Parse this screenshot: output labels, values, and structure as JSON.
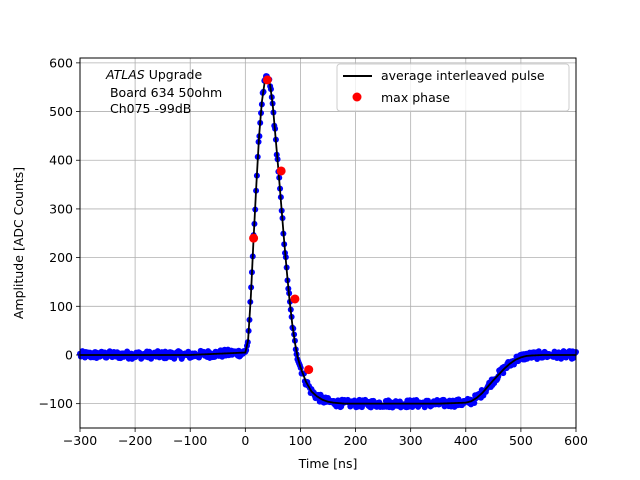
{
  "annotation": {
    "line1_italic": "ATLAS",
    "line1_rest": " Upgrade",
    "line2": " Board 634 50ohm",
    "line3": " Ch075 -99dB"
  },
  "chart_data": {
    "type": "scatter",
    "xlabel": "Time [ns]",
    "ylabel": "Amplitude [ADC Counts]",
    "xlim": [
      -300,
      600
    ],
    "ylim": [
      -150,
      610
    ],
    "xticks": [
      -300,
      -200,
      -100,
      0,
      100,
      200,
      300,
      400,
      500,
      600
    ],
    "xtick_labels": [
      "−300",
      "−200",
      "−100",
      "0",
      "100",
      "200",
      "300",
      "400",
      "500",
      "600"
    ],
    "yticks": [
      -100,
      0,
      100,
      200,
      300,
      400,
      500,
      600
    ],
    "ytick_labels": [
      "−100",
      "0",
      "100",
      "200",
      "300",
      "400",
      "500",
      "600"
    ],
    "grid": true,
    "legend_position": "upper-right",
    "colors": {
      "samples": "#0000ff",
      "pulse": "#000000",
      "max_phase": "#ff0000",
      "grid": "#b0b0b0"
    },
    "series": [
      {
        "name": "average interleaved pulse",
        "kind": "line",
        "x": [
          -300,
          -100,
          0,
          5,
          10,
          15,
          20,
          25,
          30,
          35,
          40,
          45,
          50,
          55,
          60,
          65,
          70,
          75,
          80,
          85,
          90,
          95,
          100,
          105,
          110,
          115,
          120,
          130,
          140,
          150,
          160,
          170,
          180,
          200,
          250,
          300,
          350,
          400,
          410,
          420,
          430,
          440,
          450,
          460,
          470,
          480,
          490,
          500,
          510,
          520,
          540,
          560,
          600
        ],
        "y": [
          0,
          0,
          5,
          30,
          120,
          240,
          350,
          450,
          520,
          560,
          570,
          555,
          510,
          445,
          380,
          310,
          240,
          175,
          115,
          65,
          25,
          -5,
          -25,
          -40,
          -55,
          -65,
          -75,
          -85,
          -92,
          -96,
          -98,
          -99,
          -100,
          -100,
          -100,
          -100,
          -100,
          -98,
          -95,
          -88,
          -78,
          -65,
          -52,
          -40,
          -28,
          -18,
          -10,
          -5,
          -2,
          -1,
          0,
          0,
          0
        ]
      },
      {
        "name": "max phase",
        "kind": "points",
        "x": [
          15,
          40,
          65,
          90,
          115
        ],
        "y": [
          240,
          565,
          378,
          115,
          -30
        ]
      }
    ]
  }
}
